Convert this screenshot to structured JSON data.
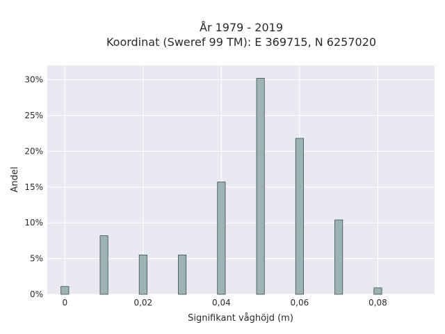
{
  "chart_data": {
    "type": "bar",
    "title_lines": [
      "År 1979 - 2019",
      "Koordinat (Sweref 99 TM): E 369715, N 6257020"
    ],
    "xlabel": "Signifikant våghöjd (m)",
    "ylabel": "Andel",
    "x_ticks": [
      {
        "value": 0,
        "label": "0"
      },
      {
        "value": 0.02,
        "label": "0,02"
      },
      {
        "value": 0.04,
        "label": "0,04"
      },
      {
        "value": 0.06,
        "label": "0,06"
      },
      {
        "value": 0.08,
        "label": "0,08"
      }
    ],
    "y_ticks": [
      {
        "value": 0,
        "label": "0%"
      },
      {
        "value": 5,
        "label": "5%"
      },
      {
        "value": 10,
        "label": "10%"
      },
      {
        "value": 15,
        "label": "15%"
      },
      {
        "value": 20,
        "label": "20%"
      },
      {
        "value": 25,
        "label": "25%"
      },
      {
        "value": 30,
        "label": "30%"
      }
    ],
    "xlim": [
      -0.0045,
      0.0945
    ],
    "ylim": [
      0,
      32
    ],
    "bar_width": 0.002,
    "x": [
      0,
      0.01,
      0.02,
      0.03,
      0.04,
      0.05,
      0.06,
      0.07,
      0.08
    ],
    "values": [
      1.1,
      8.2,
      5.5,
      5.5,
      15.7,
      30.2,
      21.8,
      10.4,
      0.9
    ],
    "grid": true,
    "colors": {
      "bar_fill": "#9db3b3",
      "bar_edge": "#3b4c4c",
      "plot_background": "#e8e9f1",
      "grid": "#ffffff"
    }
  }
}
